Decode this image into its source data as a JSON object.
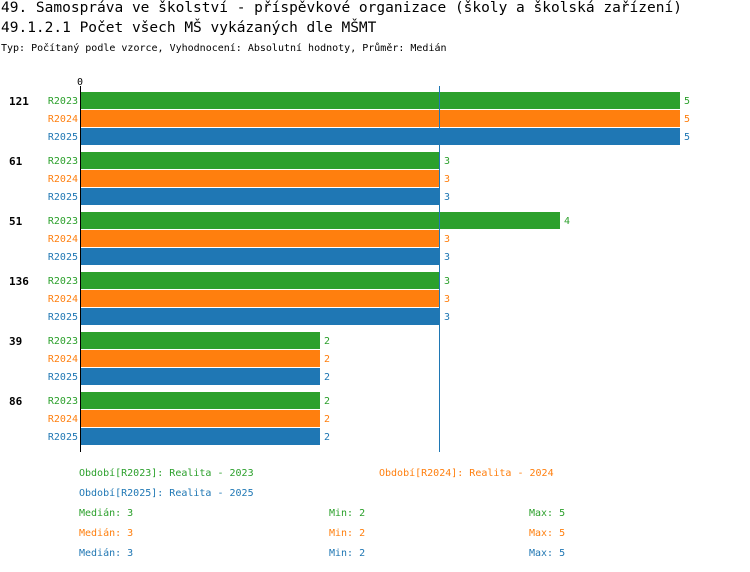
{
  "header": {
    "title": "49. Samospráva ve školství - příspěvkové organizace (školy a školská zařízení)",
    "subtitle": "49.1.2.1 Počet všech MŠ vykázaných dle MŠMT",
    "meta": "Typ: Počítaný podle vzorce, Vyhodnocení: Absolutní hodnoty, Průměr: Medián"
  },
  "colors": {
    "R2023": "#2ca02c",
    "R2024": "#ff7f0e",
    "R2025": "#1f77b4",
    "median_line": "#1f77b4"
  },
  "chart_data": {
    "type": "bar",
    "orientation": "horizontal",
    "axis_zero_label": "0",
    "categories": [
      "121",
      "61",
      "51",
      "136",
      "39",
      "86"
    ],
    "series": [
      {
        "name": "R2023",
        "values": [
          5,
          3,
          4,
          3,
          2,
          2
        ]
      },
      {
        "name": "R2024",
        "values": [
          5,
          3,
          3,
          3,
          2,
          2
        ]
      },
      {
        "name": "R2025",
        "values": [
          5,
          3,
          3,
          3,
          2,
          2
        ]
      }
    ],
    "xlim": [
      0,
      5
    ],
    "median_line": 3
  },
  "legend": [
    {
      "key": "R2023",
      "text": "Období[R2023]: Realita - 2023"
    },
    {
      "key": "R2024",
      "text": "Období[R2024]: Realita - 2024"
    },
    {
      "key": "R2025",
      "text": "Období[R2025]: Realita - 2025"
    }
  ],
  "stats": [
    {
      "key": "R2023",
      "median": "Medián: 3",
      "min": "Min: 2",
      "max": "Max: 5"
    },
    {
      "key": "R2024",
      "median": "Medián: 3",
      "min": "Min: 2",
      "max": "Max: 5"
    },
    {
      "key": "R2025",
      "median": "Medián: 3",
      "min": "Min: 2",
      "max": "Max: 5"
    }
  ]
}
